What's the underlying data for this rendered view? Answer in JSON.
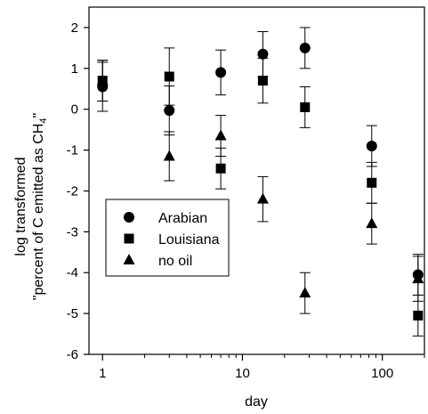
{
  "chart_data": {
    "type": "scatter",
    "xlabel": "day",
    "ylabel_line1": "log transformed",
    "ylabel_line2_prefix": "\"percent of C emitted as CH",
    "ylabel_line2_sub": "4",
    "ylabel_line2_suffix": "\"",
    "x_scale": "log",
    "xlim": [
      0.8,
      200
    ],
    "ylim": [
      -6,
      2.5
    ],
    "x_ticks": [
      1,
      10,
      100
    ],
    "x_tick_labels": [
      "1",
      "10",
      "100"
    ],
    "y_ticks": [
      -6,
      -5,
      -4,
      -3,
      -2,
      -1,
      0,
      1,
      2
    ],
    "y_tick_labels": [
      "-6",
      "-5",
      "-4",
      "-3",
      "-2",
      "-1",
      "0",
      "1",
      "2"
    ],
    "grid": false,
    "legend_position": "lower-left",
    "series": [
      {
        "name": "Arabian",
        "marker": "circle",
        "x": [
          1,
          3,
          7,
          14,
          28,
          84,
          180
        ],
        "y": [
          0.55,
          -0.03,
          0.9,
          1.35,
          1.5,
          -0.9,
          -4.05
        ],
        "err": [
          0.6,
          0.6,
          0.55,
          0.55,
          0.5,
          0.5,
          0.5
        ]
      },
      {
        "name": "Louisiana",
        "marker": "square",
        "x": [
          1,
          3,
          7,
          14,
          28,
          84,
          180
        ],
        "y": [
          0.7,
          0.8,
          -1.45,
          0.7,
          0.05,
          -1.8,
          -5.05
        ],
        "err": [
          0.5,
          0.7,
          0.5,
          0.55,
          0.5,
          0.5,
          0.5
        ]
      },
      {
        "name": "no oil",
        "marker": "triangle",
        "x": [
          1,
          3,
          7,
          14,
          28,
          84,
          180
        ],
        "y": [
          0.7,
          -1.15,
          -0.65,
          -2.2,
          -4.5,
          -2.8,
          -4.15
        ],
        "err": [
          0.5,
          0.6,
          0.5,
          0.55,
          0.5,
          0.5,
          0.55
        ]
      }
    ]
  }
}
